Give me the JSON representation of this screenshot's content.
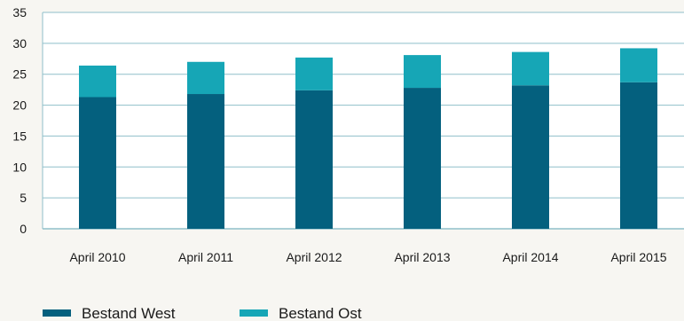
{
  "chart_data": {
    "type": "bar",
    "stacked": true,
    "categories": [
      "April 2010",
      "April 2011",
      "April 2012",
      "April 2013",
      "April 2014",
      "April 2015"
    ],
    "series": [
      {
        "name": "Bestand West",
        "color": "#04607e",
        "values": [
          21.3,
          21.8,
          22.4,
          22.8,
          23.2,
          23.7
        ]
      },
      {
        "name": "Bestand Ost",
        "color": "#16a6b6",
        "values": [
          5.1,
          5.2,
          5.3,
          5.3,
          5.4,
          5.5
        ]
      }
    ],
    "ylim": [
      0,
      35
    ],
    "yticks": [
      0,
      5,
      10,
      15,
      20,
      25,
      30,
      35
    ],
    "grid": true,
    "legend_position": "bottom-left",
    "colors": {
      "grid": "#8fbfca",
      "background": "#f7f6f2",
      "plot_background": "#ffffff"
    }
  }
}
